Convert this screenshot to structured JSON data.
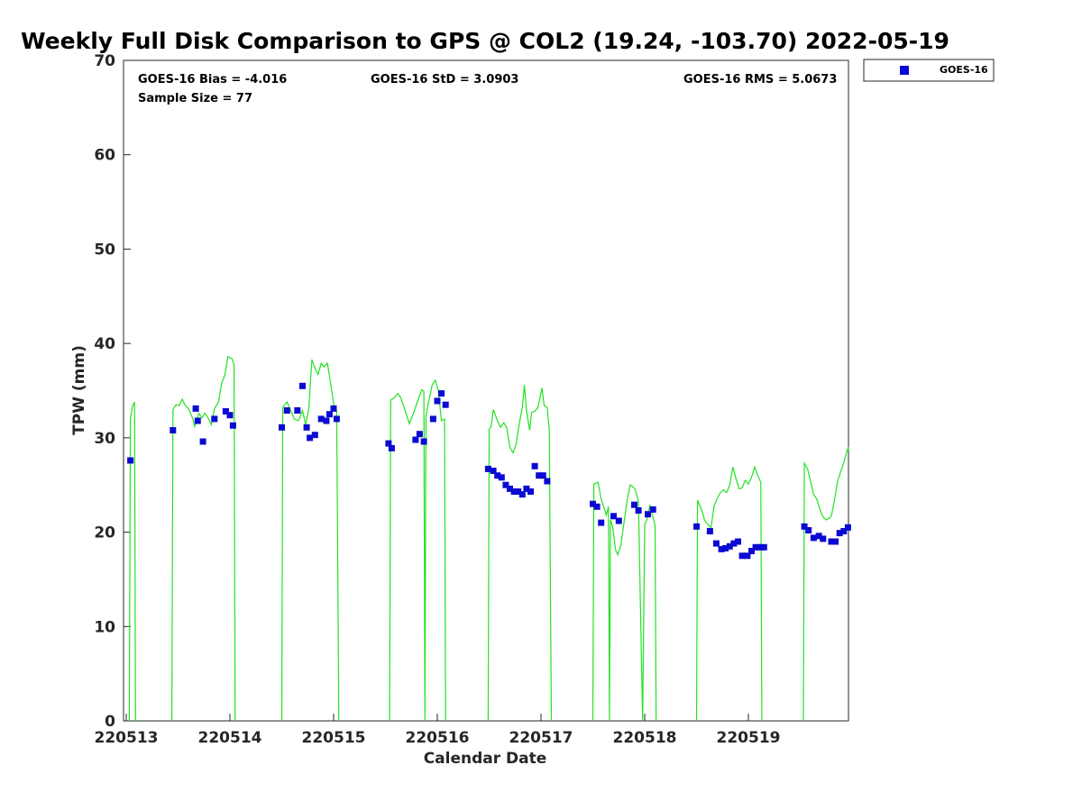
{
  "chart_data": {
    "type": "scatter",
    "title": "Weekly Full Disk Comparison to GPS @ COL2 (19.24, -103.70) 2022-05-19",
    "xlabel": "Calendar Date",
    "ylabel": "TPW (mm)",
    "xlim": [
      0,
      6.93
    ],
    "ylim": [
      0,
      70
    ],
    "x_ticks": [
      0,
      1,
      2,
      3,
      4,
      5,
      6
    ],
    "x_tick_labels": [
      "220513",
      "220514",
      "220515",
      "220516",
      "220517",
      "220518",
      "220519"
    ],
    "y_ticks": [
      0,
      10,
      20,
      30,
      40,
      50,
      60,
      70
    ],
    "y_tick_labels": [
      "0",
      "10",
      "20",
      "30",
      "40",
      "50",
      "60",
      "70"
    ],
    "grid": false,
    "legend_position": "outside-top-right",
    "stats": {
      "bias": "GOES-16 Bias = -4.016",
      "std": "GOES-16 StD = 3.0903",
      "rms": "GOES-16 RMS = 5.0673",
      "sample": "Sample Size = 77"
    },
    "colors": {
      "goes": "#0a0ad2",
      "gps": "#22e222"
    },
    "series": [
      {
        "name": "GOES-16",
        "marker": "square",
        "points": [
          [
            0.04,
            27.6
          ],
          [
            0.45,
            30.8
          ],
          [
            0.67,
            33.1
          ],
          [
            0.69,
            31.8
          ],
          [
            0.74,
            29.6
          ],
          [
            0.85,
            32.0
          ],
          [
            0.96,
            32.8
          ],
          [
            1.0,
            32.4
          ],
          [
            1.03,
            31.3
          ],
          [
            1.5,
            31.1
          ],
          [
            1.55,
            32.9
          ],
          [
            1.65,
            32.9
          ],
          [
            1.7,
            35.5
          ],
          [
            1.74,
            31.1
          ],
          [
            1.77,
            30.0
          ],
          [
            1.82,
            30.3
          ],
          [
            1.88,
            32.0
          ],
          [
            1.93,
            31.8
          ],
          [
            1.96,
            32.5
          ],
          [
            2.0,
            33.1
          ],
          [
            2.03,
            32.0
          ],
          [
            2.53,
            29.4
          ],
          [
            2.56,
            28.9
          ],
          [
            2.79,
            29.8
          ],
          [
            2.83,
            30.4
          ],
          [
            2.87,
            29.6
          ],
          [
            2.96,
            32.0
          ],
          [
            3.0,
            33.9
          ],
          [
            3.04,
            34.7
          ],
          [
            3.08,
            33.5
          ],
          [
            3.49,
            26.7
          ],
          [
            3.54,
            26.5
          ],
          [
            3.58,
            26.0
          ],
          [
            3.62,
            25.8
          ],
          [
            3.66,
            25.0
          ],
          [
            3.7,
            24.6
          ],
          [
            3.74,
            24.3
          ],
          [
            3.78,
            24.3
          ],
          [
            3.82,
            24.0
          ],
          [
            3.86,
            24.6
          ],
          [
            3.9,
            24.3
          ],
          [
            3.94,
            27.0
          ],
          [
            3.98,
            26.0
          ],
          [
            4.02,
            26.0
          ],
          [
            4.06,
            25.4
          ],
          [
            4.5,
            23.0
          ],
          [
            4.54,
            22.7
          ],
          [
            4.58,
            21.0
          ],
          [
            4.7,
            21.7
          ],
          [
            4.75,
            21.2
          ],
          [
            4.9,
            22.9
          ],
          [
            4.94,
            22.3
          ],
          [
            5.03,
            21.9
          ],
          [
            5.08,
            22.4
          ],
          [
            5.5,
            20.6
          ],
          [
            5.63,
            20.1
          ],
          [
            5.69,
            18.8
          ],
          [
            5.74,
            18.2
          ],
          [
            5.78,
            18.3
          ],
          [
            5.82,
            18.5
          ],
          [
            5.86,
            18.8
          ],
          [
            5.9,
            19.0
          ],
          [
            5.94,
            17.5
          ],
          [
            5.99,
            17.5
          ],
          [
            6.03,
            18.0
          ],
          [
            6.07,
            18.4
          ],
          [
            6.11,
            18.4
          ],
          [
            6.15,
            18.4
          ],
          [
            6.54,
            20.6
          ],
          [
            6.58,
            20.2
          ],
          [
            6.63,
            19.4
          ],
          [
            6.68,
            19.6
          ],
          [
            6.72,
            19.3
          ],
          [
            6.8,
            19.0
          ],
          [
            6.84,
            19.0
          ],
          [
            6.88,
            19.9
          ],
          [
            6.92,
            20.1
          ],
          [
            6.96,
            20.5
          ]
        ]
      },
      {
        "name": "GPS",
        "type": "line",
        "segments": [
          [
            [
              0.03,
              0
            ],
            [
              0.04,
              32
            ],
            [
              0.06,
              33.3
            ],
            [
              0.08,
              33.8
            ],
            [
              0.09,
              0
            ]
          ],
          [
            [
              0.44,
              0
            ],
            [
              0.45,
              33
            ],
            [
              0.48,
              33.5
            ],
            [
              0.51,
              33.4
            ],
            [
              0.54,
              34.1
            ],
            [
              0.57,
              33.4
            ],
            [
              0.6,
              33.1
            ],
            [
              0.64,
              32.1
            ],
            [
              0.66,
              31.2
            ],
            [
              0.7,
              32.6
            ],
            [
              0.73,
              32.1
            ],
            [
              0.76,
              32.6
            ],
            [
              0.79,
              32.1
            ],
            [
              0.82,
              31.4
            ],
            [
              0.85,
              33.1
            ],
            [
              0.89,
              33.8
            ],
            [
              0.92,
              35.8
            ],
            [
              0.95,
              36.6
            ],
            [
              0.98,
              38.6
            ],
            [
              1.02,
              38.4
            ],
            [
              1.04,
              37.7
            ],
            [
              1.05,
              0
            ]
          ],
          [
            [
              1.5,
              0
            ],
            [
              1.51,
              33.2
            ],
            [
              1.55,
              33.8
            ],
            [
              1.59,
              32.8
            ],
            [
              1.62,
              32
            ],
            [
              1.66,
              31.8
            ],
            [
              1.7,
              32.9
            ],
            [
              1.73,
              31.4
            ],
            [
              1.76,
              33.0
            ],
            [
              1.79,
              38.3
            ],
            [
              1.82,
              37.4
            ],
            [
              1.85,
              36.7
            ],
            [
              1.88,
              37.9
            ],
            [
              1.91,
              37.5
            ],
            [
              1.94,
              37.9
            ],
            [
              1.97,
              35.9
            ],
            [
              2.0,
              33.6
            ],
            [
              2.03,
              32.8
            ],
            [
              2.05,
              0
            ]
          ],
          [
            [
              2.54,
              0
            ],
            [
              2.55,
              34
            ],
            [
              2.58,
              34.2
            ],
            [
              2.62,
              34.7
            ],
            [
              2.65,
              34.2
            ],
            [
              2.69,
              32.9
            ],
            [
              2.73,
              31.5
            ],
            [
              2.77,
              32.6
            ],
            [
              2.81,
              33.9
            ],
            [
              2.85,
              35.1
            ],
            [
              2.87,
              34.9
            ],
            [
              2.88,
              0
            ],
            [
              2.89,
              32.3
            ],
            [
              2.91,
              33.5
            ],
            [
              2.95,
              35.6
            ],
            [
              2.98,
              36.1
            ],
            [
              3.01,
              35.0
            ],
            [
              3.04,
              31.8
            ],
            [
              3.07,
              32.0
            ],
            [
              3.08,
              0
            ]
          ],
          [
            [
              3.49,
              0
            ],
            [
              3.5,
              30.9
            ],
            [
              3.52,
              31.2
            ],
            [
              3.54,
              33.0
            ],
            [
              3.58,
              31.8
            ],
            [
              3.61,
              31.1
            ],
            [
              3.64,
              31.6
            ],
            [
              3.67,
              31.1
            ],
            [
              3.7,
              29.0
            ],
            [
              3.73,
              28.4
            ],
            [
              3.76,
              29.3
            ],
            [
              3.79,
              31.5
            ],
            [
              3.82,
              33.2
            ],
            [
              3.84,
              35.6
            ],
            [
              3.86,
              32.9
            ],
            [
              3.89,
              30.8
            ],
            [
              3.91,
              32.7
            ],
            [
              3.94,
              32.8
            ],
            [
              3.97,
              33.2
            ],
            [
              4.01,
              35.3
            ],
            [
              4.03,
              33.4
            ],
            [
              4.06,
              33.2
            ],
            [
              4.08,
              30.8
            ],
            [
              4.1,
              0
            ]
          ],
          [
            [
              4.5,
              0
            ],
            [
              4.51,
              25.1
            ],
            [
              4.55,
              25.3
            ],
            [
              4.58,
              23.5
            ],
            [
              4.61,
              22.5
            ],
            [
              4.63,
              21.8
            ],
            [
              4.65,
              22.7
            ],
            [
              4.66,
              0
            ],
            [
              4.67,
              21.3
            ],
            [
              4.69,
              20.6
            ],
            [
              4.72,
              18.1
            ],
            [
              4.74,
              17.6
            ],
            [
              4.77,
              18.6
            ],
            [
              4.8,
              21.0
            ],
            [
              4.83,
              23.3
            ],
            [
              4.86,
              25.0
            ],
            [
              4.88,
              24.9
            ],
            [
              4.91,
              24.5
            ],
            [
              4.94,
              23.2
            ],
            [
              4.98,
              0
            ],
            [
              5.0,
              20.8
            ],
            [
              5.02,
              21.3
            ],
            [
              5.05,
              22.9
            ],
            [
              5.07,
              22.0
            ],
            [
              5.1,
              20.7
            ],
            [
              5.11,
              0
            ]
          ],
          [
            [
              5.5,
              0
            ],
            [
              5.51,
              23.4
            ],
            [
              5.55,
              22.3
            ],
            [
              5.58,
              21.2
            ],
            [
              5.61,
              20.8
            ],
            [
              5.64,
              20.5
            ],
            [
              5.67,
              22.8
            ],
            [
              5.7,
              23.6
            ],
            [
              5.73,
              24.2
            ],
            [
              5.76,
              24.5
            ],
            [
              5.79,
              24.2
            ],
            [
              5.82,
              25.0
            ],
            [
              5.85,
              26.9
            ],
            [
              5.88,
              25.7
            ],
            [
              5.91,
              24.6
            ],
            [
              5.94,
              24.7
            ],
            [
              5.97,
              25.5
            ],
            [
              6.0,
              25.1
            ],
            [
              6.03,
              25.8
            ],
            [
              6.06,
              26.9
            ],
            [
              6.09,
              26.0
            ],
            [
              6.12,
              25.3
            ],
            [
              6.13,
              0
            ]
          ],
          [
            [
              6.53,
              0
            ],
            [
              6.54,
              27.3
            ],
            [
              6.57,
              26.7
            ],
            [
              6.6,
              25.4
            ],
            [
              6.63,
              24.0
            ],
            [
              6.66,
              23.5
            ],
            [
              6.69,
              22.4
            ],
            [
              6.72,
              21.6
            ],
            [
              6.75,
              21.3
            ],
            [
              6.78,
              21.5
            ],
            [
              6.8,
              21.7
            ],
            [
              6.83,
              23.4
            ],
            [
              6.86,
              25.4
            ],
            [
              6.89,
              26.4
            ],
            [
              6.92,
              27.4
            ],
            [
              6.95,
              28.6
            ],
            [
              6.98,
              29.0
            ],
            [
              7.0,
              28.7
            ],
            [
              7.02,
              28.9
            ]
          ]
        ]
      }
    ]
  }
}
